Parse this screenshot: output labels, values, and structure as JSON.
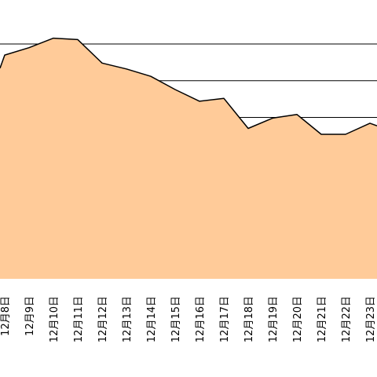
{
  "colors": {
    "area_fill": "#FFCB99",
    "line": "#000000",
    "grid": "#000000",
    "background": "#FFFFFF"
  },
  "chart_data": {
    "type": "area",
    "title": "",
    "xlabel": "",
    "ylabel": "",
    "grid": true,
    "grid_values": [
      100,
      150,
      200
    ],
    "ylim": [
      -120,
      260
    ],
    "categories": [
      "12月8日",
      "12月9日",
      "12月10日",
      "12月11日",
      "12月12日",
      "12月13日",
      "12月14日",
      "12月15日",
      "12月16日",
      "12月17日",
      "12月18日",
      "12月19日",
      "12月20日",
      "12月21日",
      "12月22日",
      "12月23日"
    ],
    "series": [
      {
        "values": [
          185,
          195,
          208,
          206,
          174,
          166,
          156,
          138,
          122,
          126,
          85,
          99,
          104,
          77,
          77,
          92
        ]
      }
    ],
    "partial_edges": {
      "left_value": 167,
      "right_value": 80
    }
  }
}
